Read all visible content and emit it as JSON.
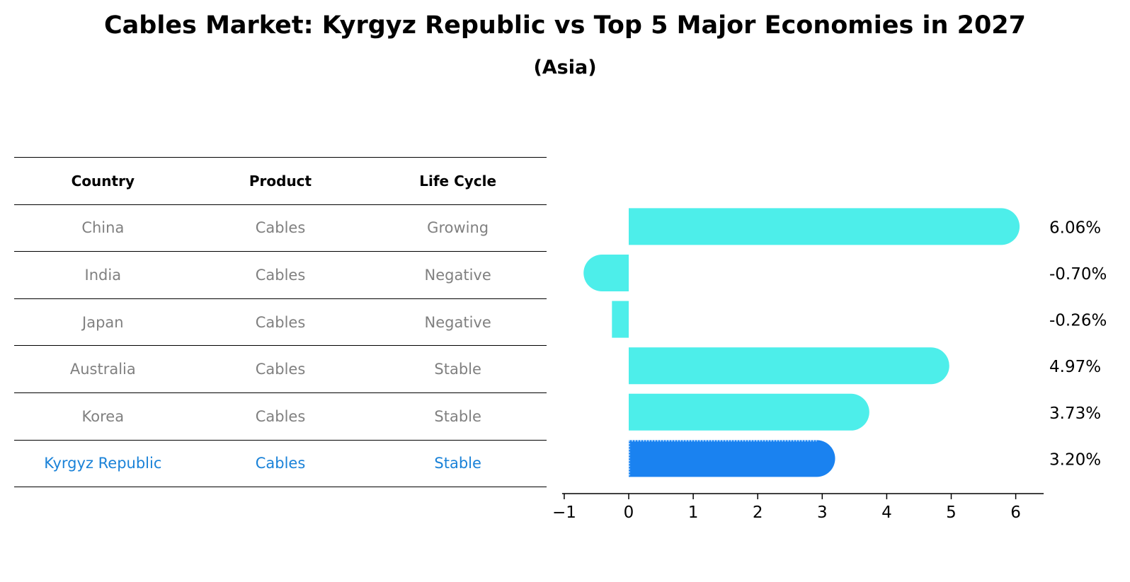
{
  "title": "Cables Market: Kyrgyz Republic vs Top 5 Major Economies in 2027",
  "subtitle": "(Asia)",
  "table": {
    "headers": [
      "Country",
      "Product",
      "Life Cycle"
    ],
    "rows": [
      [
        "China",
        "Cables",
        "Growing"
      ],
      [
        "India",
        "Cables",
        "Negative"
      ],
      [
        "Japan",
        "Cables",
        "Negative"
      ],
      [
        "Australia",
        "Cables",
        "Stable"
      ],
      [
        "Korea",
        "Cables",
        "Stable"
      ],
      [
        "Kyrgyz Republic",
        "Cables",
        "Stable"
      ]
    ],
    "highlight_row": 5
  },
  "colors": {
    "bar": "#4deeea",
    "highlight_bar": "#1a82f0",
    "highlight_text": "#1a82d8",
    "muted_text": "#808080"
  },
  "chart_data": {
    "type": "bar",
    "orientation": "horizontal",
    "categories": [
      "China",
      "India",
      "Japan",
      "Australia",
      "Korea",
      "Kyrgyz Republic"
    ],
    "values": [
      6.06,
      -0.7,
      -0.26,
      4.97,
      3.73,
      3.2
    ],
    "value_labels": [
      "6.06%",
      "-0.70%",
      "-0.26%",
      "4.97%",
      "3.73%",
      "3.20%"
    ],
    "highlight_index": 5,
    "xlim": [
      -1,
      6.4
    ],
    "xticks": [
      -1,
      0,
      1,
      2,
      3,
      4,
      5,
      6
    ],
    "xtick_labels": [
      "−1",
      "0",
      "1",
      "2",
      "3",
      "4",
      "5",
      "6"
    ],
    "xlabel": "",
    "ylabel": "",
    "grid": false
  }
}
